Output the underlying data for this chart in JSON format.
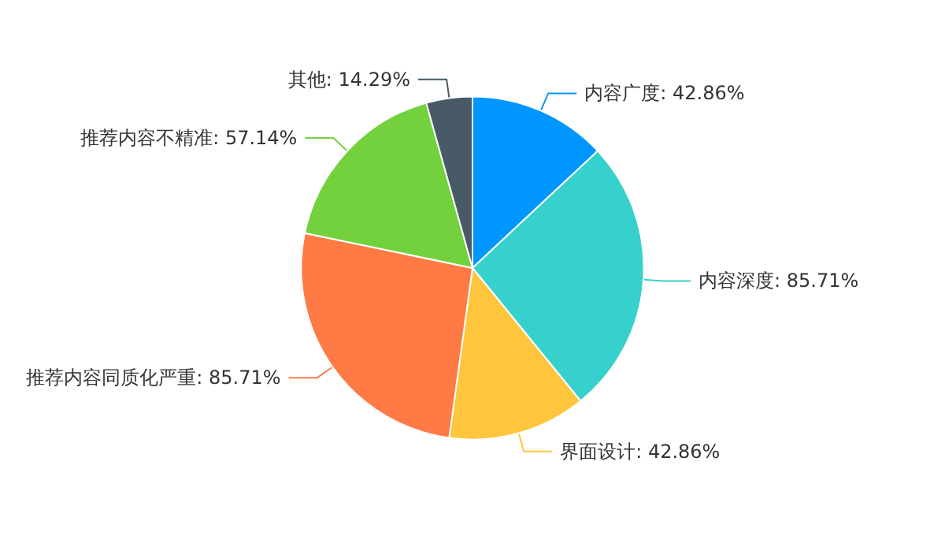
{
  "chart_data": {
    "type": "pie",
    "categories": [
      "内容广度",
      "内容深度",
      "界面设计",
      "推荐内容同质化严重",
      "推荐内容不精准",
      "其他"
    ],
    "values": [
      42.86,
      85.71,
      42.86,
      85.71,
      57.14,
      14.29
    ],
    "value_labels": [
      "42.86%",
      "85.71%",
      "42.86%",
      "85.71%",
      "57.14%",
      "14.29%"
    ],
    "colors": [
      "#0096ff",
      "#36d1cc",
      "#ffc53d",
      "#ff7a45",
      "#73d13d",
      "#475a66"
    ],
    "legend": false
  }
}
